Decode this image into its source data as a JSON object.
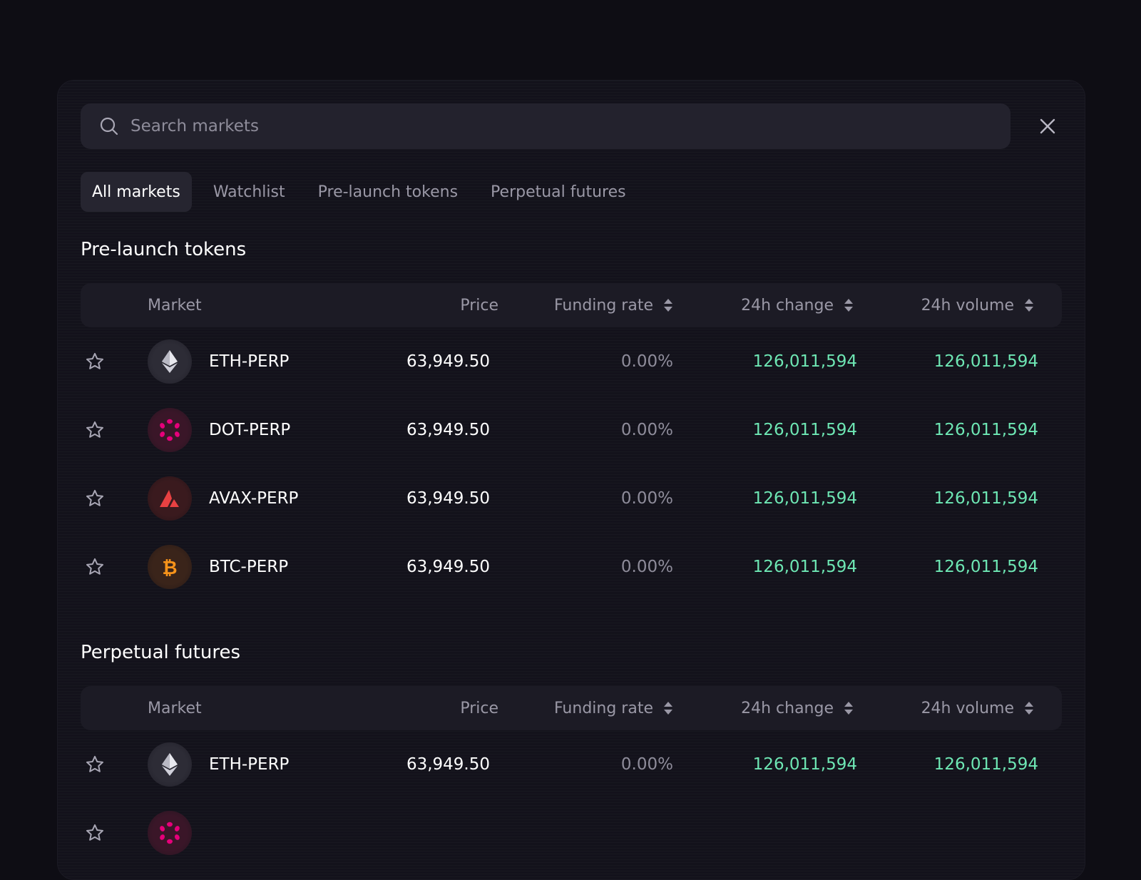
{
  "search": {
    "placeholder": "Search markets"
  },
  "tabs": [
    {
      "label": "All markets",
      "active": true
    },
    {
      "label": "Watchlist"
    },
    {
      "label": "Pre-launch tokens"
    },
    {
      "label": "Perpetual futures"
    }
  ],
  "columns": {
    "market": "Market",
    "price": "Price",
    "funding": "Funding rate",
    "change": "24h change",
    "volume": "24h volume"
  },
  "sections": [
    {
      "title": "Pre-launch tokens",
      "rows": [
        {
          "market": "ETH-PERP",
          "icon": "ethereum-icon",
          "price": "63,949.50",
          "funding": "0.00%",
          "change": "126,011,594",
          "volume": "126,011,594"
        },
        {
          "market": "DOT-PERP",
          "icon": "polkadot-icon",
          "price": "63,949.50",
          "funding": "0.00%",
          "change": "126,011,594",
          "volume": "126,011,594"
        },
        {
          "market": "AVAX-PERP",
          "icon": "avalanche-icon",
          "price": "63,949.50",
          "funding": "0.00%",
          "change": "126,011,594",
          "volume": "126,011,594"
        },
        {
          "market": "BTC-PERP",
          "icon": "bitcoin-icon",
          "price": "63,949.50",
          "funding": "0.00%",
          "change": "126,011,594",
          "volume": "126,011,594"
        }
      ]
    },
    {
      "title": "Perpetual futures",
      "rows": [
        {
          "market": "ETH-PERP",
          "icon": "ethereum-icon",
          "price": "63,949.50",
          "funding": "0.00%",
          "change": "126,011,594",
          "volume": "126,011,594"
        }
      ]
    }
  ],
  "colors": {
    "positive": "#6ee7b4",
    "muted": "#8e8c9a",
    "panel": "#13121b"
  }
}
